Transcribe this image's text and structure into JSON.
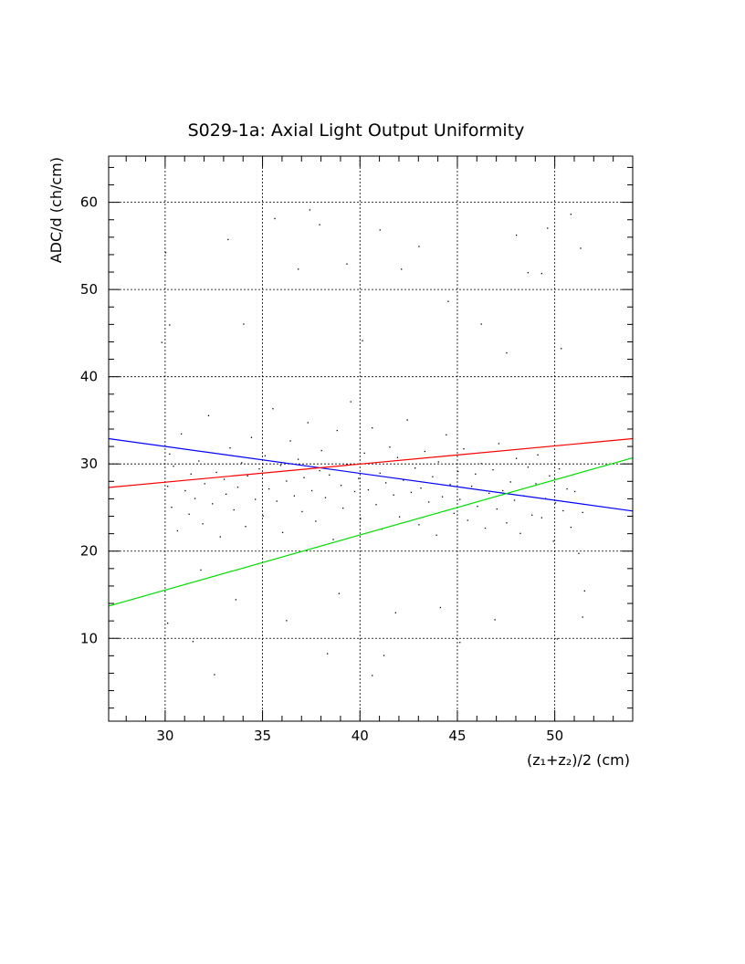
{
  "chart_data": {
    "type": "scatter",
    "title": "S029-1a: Axial Light Output Uniformity",
    "xlabel": "(z₁+z₂)/2 (cm)",
    "ylabel": "ADC/d (ch/cm)",
    "xlim": [
      27.1,
      54.0
    ],
    "ylim": [
      0.5,
      65.3
    ],
    "x_ticks": [
      30,
      35,
      40,
      45,
      50
    ],
    "y_ticks": [
      10,
      20,
      30,
      40,
      50,
      60
    ],
    "x_minor_step": 1,
    "y_minor_step": 2,
    "grid": true,
    "points_note_sample": true,
    "points": [
      [
        30.1,
        27.5
      ],
      [
        30.3,
        25.1
      ],
      [
        30.4,
        29.8
      ],
      [
        30.2,
        31.2
      ],
      [
        30.6,
        22.4
      ],
      [
        30.8,
        33.5
      ],
      [
        31.0,
        27.0
      ],
      [
        31.2,
        24.3
      ],
      [
        31.3,
        28.9
      ],
      [
        31.5,
        26.1
      ],
      [
        31.7,
        30.4
      ],
      [
        31.9,
        23.2
      ],
      [
        32.0,
        27.8
      ],
      [
        32.2,
        35.6
      ],
      [
        32.4,
        25.5
      ],
      [
        32.6,
        29.1
      ],
      [
        32.8,
        21.7
      ],
      [
        33.0,
        28.3
      ],
      [
        33.1,
        26.6
      ],
      [
        33.3,
        31.9
      ],
      [
        33.5,
        24.8
      ],
      [
        33.7,
        27.4
      ],
      [
        33.9,
        30.2
      ],
      [
        34.1,
        22.9
      ],
      [
        34.2,
        28.7
      ],
      [
        34.4,
        33.1
      ],
      [
        34.6,
        26.0
      ],
      [
        34.8,
        29.5
      ],
      [
        35.0,
        24.1
      ],
      [
        35.1,
        31.0
      ],
      [
        35.3,
        27.2
      ],
      [
        35.5,
        36.4
      ],
      [
        35.7,
        25.8
      ],
      [
        35.9,
        29.9
      ],
      [
        36.0,
        22.2
      ],
      [
        36.2,
        28.1
      ],
      [
        36.4,
        32.7
      ],
      [
        36.6,
        26.4
      ],
      [
        36.8,
        30.6
      ],
      [
        37.0,
        24.6
      ],
      [
        37.1,
        28.5
      ],
      [
        37.3,
        34.8
      ],
      [
        37.5,
        27.0
      ],
      [
        37.7,
        23.5
      ],
      [
        37.9,
        29.3
      ],
      [
        38.0,
        31.6
      ],
      [
        38.2,
        26.2
      ],
      [
        38.4,
        28.8
      ],
      [
        38.6,
        21.4
      ],
      [
        38.8,
        33.9
      ],
      [
        39.0,
        27.6
      ],
      [
        39.1,
        25.0
      ],
      [
        39.3,
        30.0
      ],
      [
        39.5,
        37.2
      ],
      [
        39.7,
        26.9
      ],
      [
        39.9,
        28.4
      ],
      [
        40.0,
        23.8
      ],
      [
        40.2,
        31.3
      ],
      [
        40.4,
        27.1
      ],
      [
        40.6,
        34.2
      ],
      [
        40.8,
        25.4
      ],
      [
        41.0,
        29.0
      ],
      [
        41.1,
        22.6
      ],
      [
        41.3,
        27.9
      ],
      [
        41.5,
        32.0
      ],
      [
        41.7,
        26.5
      ],
      [
        41.9,
        30.8
      ],
      [
        42.0,
        24.0
      ],
      [
        42.2,
        28.2
      ],
      [
        42.4,
        35.1
      ],
      [
        42.6,
        26.8
      ],
      [
        42.8,
        29.6
      ],
      [
        43.0,
        23.1
      ],
      [
        43.1,
        27.3
      ],
      [
        43.3,
        31.5
      ],
      [
        43.5,
        25.7
      ],
      [
        43.7,
        28.6
      ],
      [
        43.9,
        21.9
      ],
      [
        44.0,
        30.3
      ],
      [
        44.2,
        26.3
      ],
      [
        44.4,
        33.4
      ],
      [
        44.6,
        27.7
      ],
      [
        44.8,
        24.4
      ],
      [
        45.0,
        29.2
      ],
      [
        45.1,
        26.0
      ],
      [
        45.3,
        31.8
      ],
      [
        45.5,
        23.6
      ],
      [
        45.7,
        27.5
      ],
      [
        45.9,
        28.9
      ],
      [
        46.0,
        25.2
      ],
      [
        46.2,
        30.1
      ],
      [
        46.4,
        22.7
      ],
      [
        46.6,
        26.7
      ],
      [
        46.8,
        29.4
      ],
      [
        47.0,
        24.9
      ],
      [
        47.1,
        32.4
      ],
      [
        47.3,
        27.0
      ],
      [
        47.5,
        23.3
      ],
      [
        47.7,
        28.0
      ],
      [
        47.9,
        25.9
      ],
      [
        48.0,
        30.7
      ],
      [
        48.2,
        22.1
      ],
      [
        48.4,
        26.4
      ],
      [
        48.6,
        29.7
      ],
      [
        48.8,
        24.2
      ],
      [
        49.0,
        27.8
      ],
      [
        49.1,
        31.1
      ],
      [
        49.3,
        23.9
      ],
      [
        49.5,
        26.1
      ],
      [
        49.7,
        28.7
      ],
      [
        49.9,
        21.2
      ],
      [
        50.0,
        25.6
      ],
      [
        50.2,
        29.5
      ],
      [
        50.4,
        24.7
      ],
      [
        50.6,
        27.2
      ],
      [
        50.8,
        22.8
      ],
      [
        51.0,
        26.9
      ],
      [
        51.2,
        19.8
      ],
      [
        51.4,
        24.5
      ],
      [
        51.5,
        15.5
      ],
      [
        30.0,
        54.3
      ],
      [
        30.2,
        46.0
      ],
      [
        30.1,
        11.8
      ],
      [
        31.4,
        9.7
      ],
      [
        32.5,
        5.9
      ],
      [
        33.2,
        55.8
      ],
      [
        34.0,
        46.1
      ],
      [
        35.6,
        58.2
      ],
      [
        36.8,
        52.4
      ],
      [
        37.4,
        59.2
      ],
      [
        37.9,
        57.5
      ],
      [
        38.3,
        8.3
      ],
      [
        39.3,
        53.0
      ],
      [
        40.1,
        44.2
      ],
      [
        40.6,
        5.8
      ],
      [
        41.0,
        56.9
      ],
      [
        41.2,
        8.1
      ],
      [
        42.1,
        52.4
      ],
      [
        43.0,
        55.0
      ],
      [
        44.5,
        48.7
      ],
      [
        45.1,
        9.6
      ],
      [
        46.2,
        46.1
      ],
      [
        47.5,
        42.8
      ],
      [
        48.0,
        56.3
      ],
      [
        48.6,
        52.0
      ],
      [
        49.3,
        51.9
      ],
      [
        49.6,
        57.1
      ],
      [
        50.3,
        43.3
      ],
      [
        50.8,
        58.7
      ],
      [
        51.3,
        54.8
      ],
      [
        33.6,
        14.5
      ],
      [
        36.2,
        12.1
      ],
      [
        38.9,
        15.2
      ],
      [
        41.8,
        13.0
      ],
      [
        44.1,
        13.6
      ],
      [
        46.9,
        12.2
      ],
      [
        50.1,
        10.0
      ],
      [
        51.4,
        12.5
      ],
      [
        31.8,
        17.9
      ],
      [
        29.8,
        44.0
      ]
    ],
    "fit_lines": [
      {
        "name": "blue fit",
        "color": "#0000ff",
        "x": [
          27.1,
          54.0
        ],
        "y": [
          32.9,
          24.6
        ]
      },
      {
        "name": "red fit",
        "color": "#ff0000",
        "x": [
          27.1,
          54.0
        ],
        "y": [
          27.3,
          32.9
        ]
      },
      {
        "name": "green fit",
        "color": "#00dd00",
        "x": [
          27.1,
          54.0
        ],
        "y": [
          13.7,
          30.7
        ]
      }
    ]
  }
}
